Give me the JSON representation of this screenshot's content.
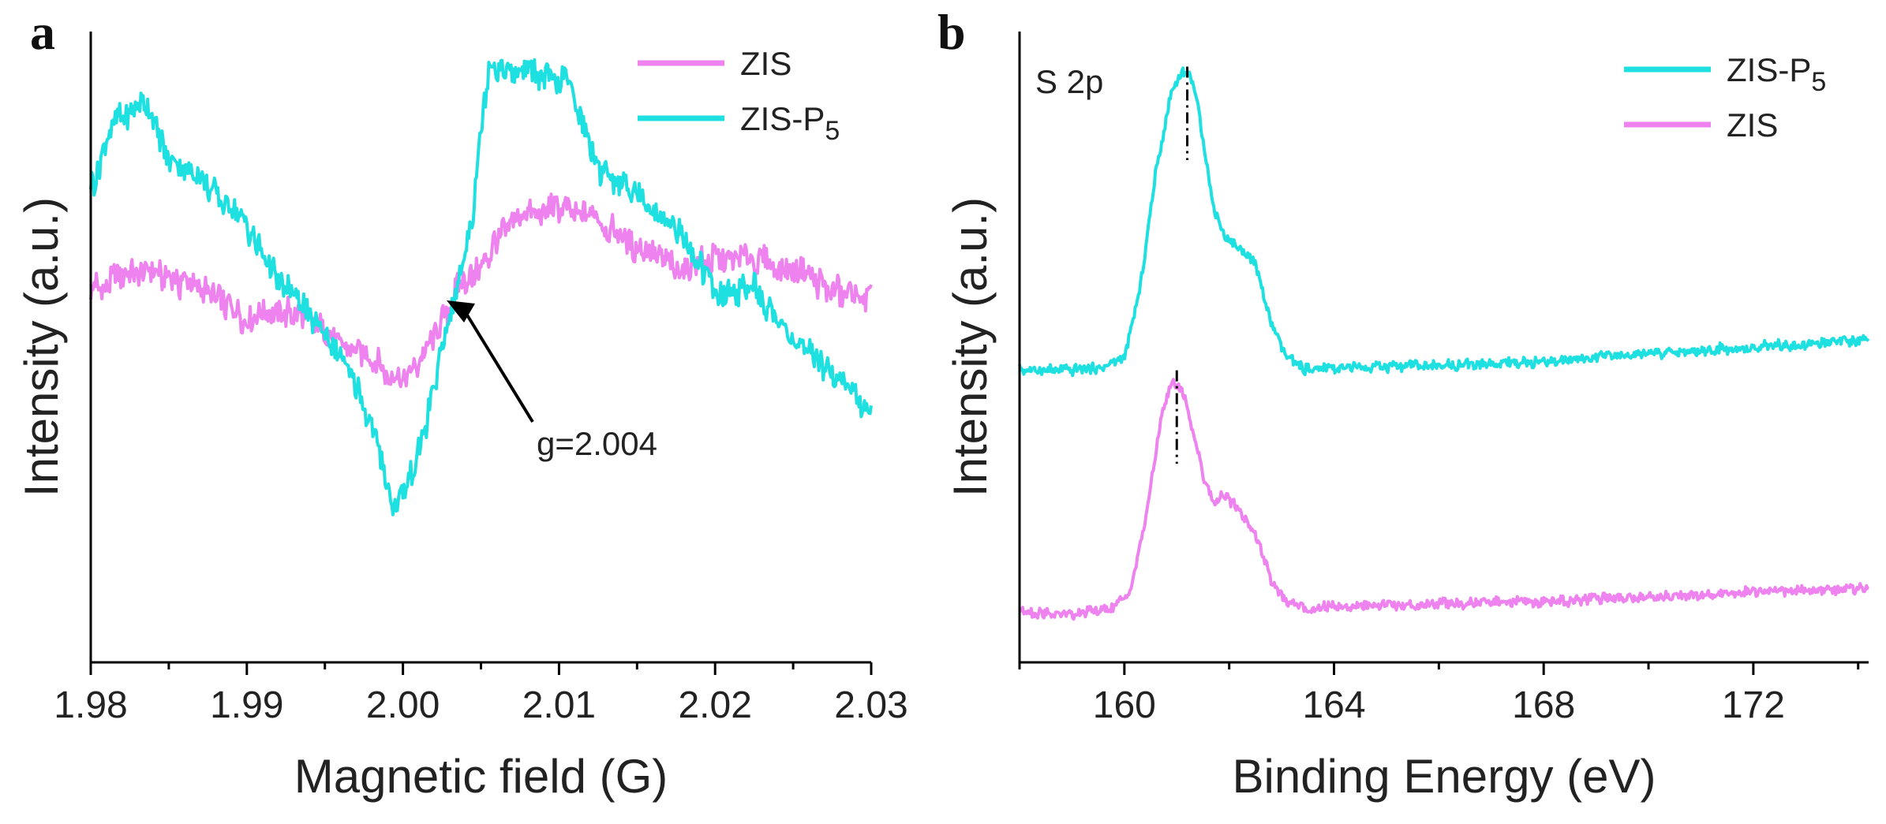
{
  "chart_data": [
    {
      "panel_label": "a",
      "type": "line",
      "xlabel": "Magnetic field (G)",
      "ylabel": "Intensity (a.u.)",
      "xlim": [
        1.98,
        2.03
      ],
      "ylim": [
        -1.8,
        1.25
      ],
      "xticks": [
        "1.98",
        "1.99",
        "2.00",
        "2.01",
        "2.02",
        "2.03"
      ],
      "show_y_ticks": false,
      "legend_position": "top-right",
      "annotation": {
        "text": "g=2.004",
        "x": 2.0035,
        "y": -0.05
      },
      "series": [
        {
          "name": "ZIS",
          "color": "#ee82ee",
          "x": [
            1.98,
            1.9825,
            1.985,
            1.9875,
            1.99,
            1.9925,
            1.995,
            1.9975,
            1.999,
            2.0,
            2.001,
            2.0025,
            2.0035,
            2.005,
            2.006,
            2.0075,
            2.01,
            2.0125,
            2.015,
            2.0175,
            2.02,
            2.0225,
            2.025,
            2.0275,
            2.03
          ],
          "y": [
            0.0,
            0.1,
            0.05,
            0.0,
            -0.15,
            -0.1,
            -0.2,
            -0.3,
            -0.4,
            -0.45,
            -0.35,
            -0.15,
            0.0,
            0.1,
            0.25,
            0.35,
            0.4,
            0.35,
            0.2,
            0.1,
            0.15,
            0.15,
            0.1,
            0.0,
            -0.05
          ]
        },
        {
          "name": "ZIS-P5",
          "color": "#1ee0e0",
          "x": [
            1.98,
            1.9815,
            1.9835,
            1.985,
            1.9875,
            1.99,
            1.9925,
            1.995,
            1.997,
            1.9985,
            1.9995,
            2.0005,
            2.0015,
            2.0025,
            2.0035,
            2.0045,
            2.0055,
            2.007,
            2.009,
            2.0105,
            2.0125,
            2.015,
            2.0175,
            2.02,
            2.0225,
            2.025,
            2.0275,
            2.03
          ],
          "y": [
            0.5,
            0.8,
            0.9,
            0.65,
            0.5,
            0.3,
            0.0,
            -0.2,
            -0.45,
            -0.8,
            -1.05,
            -0.9,
            -0.65,
            -0.3,
            0.0,
            0.4,
            1.1,
            1.05,
            1.05,
            1.0,
            0.6,
            0.45,
            0.3,
            0.0,
            0.0,
            -0.25,
            -0.4,
            -0.6
          ]
        }
      ]
    },
    {
      "panel_label": "b",
      "type": "line",
      "xlabel": "Binding Energy (eV)",
      "ylabel": "Intensity (a.u.)",
      "xlim": [
        158,
        174.2
      ],
      "ylim": [
        -0.2,
        2.5
      ],
      "xticks": [
        160,
        164,
        168,
        172
      ],
      "show_y_ticks": false,
      "legend_position": "top-right",
      "region_label": "S 2p",
      "peak_markers": [
        {
          "x": 161.2,
          "y0": 1.95,
          "y1": 2.35
        },
        {
          "x": 161.0,
          "y0": 0.65,
          "y1": 1.05
        }
      ],
      "series": [
        {
          "name": "ZIS-P5",
          "color": "#1ee0e0",
          "x": [
            158,
            159,
            159.5,
            160,
            160.3,
            160.6,
            160.9,
            161.1,
            161.3,
            161.5,
            161.7,
            161.9,
            162.2,
            162.5,
            162.8,
            163.1,
            163.5,
            164,
            166,
            168,
            170,
            172,
            174.2
          ],
          "y": [
            1.05,
            1.05,
            1.06,
            1.1,
            1.4,
            1.9,
            2.25,
            2.33,
            2.3,
            2.05,
            1.75,
            1.62,
            1.58,
            1.5,
            1.25,
            1.1,
            1.05,
            1.06,
            1.07,
            1.09,
            1.12,
            1.15,
            1.18
          ]
        },
        {
          "name": "ZIS",
          "color": "#ee82ee",
          "x": [
            158,
            159,
            159.8,
            160.1,
            160.4,
            160.7,
            160.9,
            161.1,
            161.3,
            161.5,
            161.7,
            161.9,
            162.2,
            162.5,
            162.8,
            163.1,
            163.5,
            164,
            166,
            168,
            170,
            172,
            174.2
          ],
          "y": [
            0.02,
            0.0,
            0.03,
            0.1,
            0.4,
            0.85,
            1.0,
            0.97,
            0.8,
            0.6,
            0.48,
            0.52,
            0.45,
            0.35,
            0.15,
            0.06,
            0.03,
            0.04,
            0.05,
            0.06,
            0.08,
            0.1,
            0.12
          ]
        }
      ]
    }
  ]
}
